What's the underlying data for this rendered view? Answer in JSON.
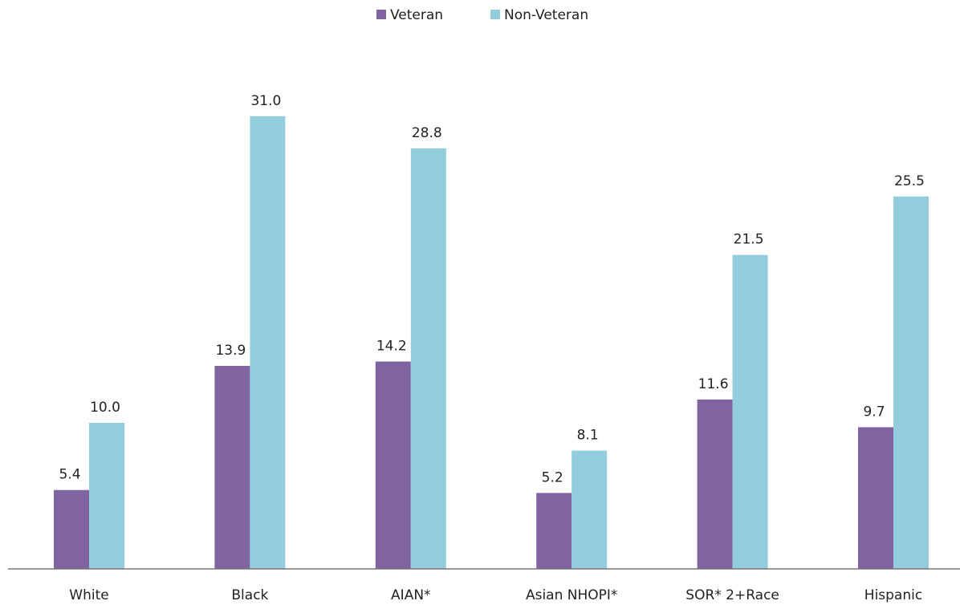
{
  "chart_data": {
    "type": "bar",
    "categories": [
      "White",
      "Black",
      "AIAN*",
      "Asian NHOPI*",
      "SOR* 2+Race",
      "Hispanic"
    ],
    "series": [
      {
        "name": "Veteran",
        "color": "#8064a2",
        "values": [
          5.4,
          13.9,
          14.2,
          5.2,
          11.6,
          9.7
        ]
      },
      {
        "name": "Non-Veteran",
        "color": "#93cddd",
        "values": [
          10.0,
          31.0,
          28.8,
          8.1,
          21.5,
          25.5
        ],
        "value_labels": [
          "10.0",
          "31.0",
          "28.8",
          "8.1",
          "21.5",
          "25.5"
        ]
      }
    ],
    "ylim": [
      0,
      35
    ],
    "legend": "top"
  }
}
